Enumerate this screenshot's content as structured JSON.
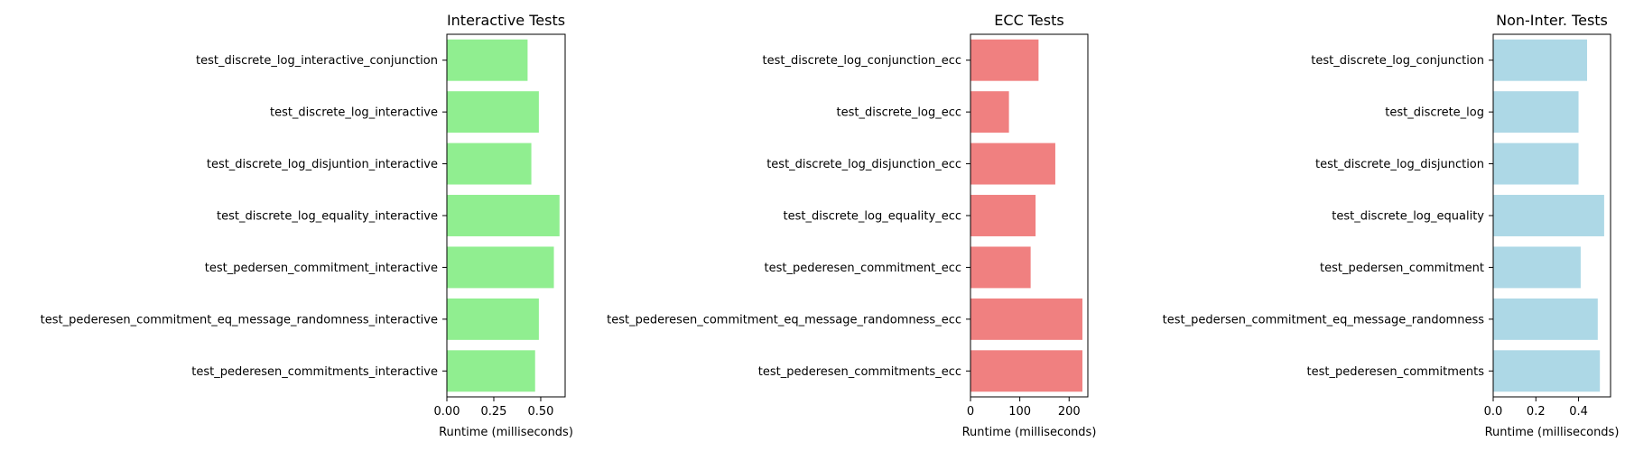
{
  "chart_data": [
    {
      "type": "bar",
      "orientation": "horizontal",
      "title": "Interactive Tests",
      "xlabel": "Runtime (milliseconds)",
      "ylabel": "",
      "xlim": [
        0,
        0.63
      ],
      "xticks": [
        0,
        0.25,
        0.5
      ],
      "xtick_labels": [
        "0.00",
        "0.25",
        "0.50"
      ],
      "color": "#90ee90",
      "categories": [
        "test_discrete_log_interactive_conjunction",
        "test_discrete_log_interactive",
        "test_discrete_log_disjuntion_interactive",
        "test_discrete_log_equality_interactive",
        "test_pedersen_commitment_interactive",
        "test_pederesen_commitment_eq_message_randomness_interactive",
        "test_pederesen_commitments_interactive"
      ],
      "values": [
        0.43,
        0.49,
        0.45,
        0.6,
        0.57,
        0.49,
        0.47
      ]
    },
    {
      "type": "bar",
      "orientation": "horizontal",
      "title": "ECC Tests",
      "xlabel": "Runtime (milliseconds)",
      "ylabel": "",
      "xlim": [
        0,
        238
      ],
      "xticks": [
        0,
        100,
        200
      ],
      "xtick_labels": [
        "0",
        "100",
        "200"
      ],
      "color": "#f08080",
      "categories": [
        "test_discrete_log_conjunction_ecc",
        "test_discrete_log_ecc",
        "test_discrete_log_disjunction_ecc",
        "test_discrete_log_equality_ecc",
        "test_pederesen_commitment_ecc",
        "test_pederesen_commitment_eq_message_randomness_ecc",
        "test_pederesen_commitments_ecc"
      ],
      "values": [
        138,
        78,
        172,
        132,
        122,
        227,
        227
      ]
    },
    {
      "type": "bar",
      "orientation": "horizontal",
      "title": "Non-Inter. Tests",
      "xlabel": "Runtime (milliseconds)",
      "ylabel": "",
      "xlim": [
        0,
        0.55
      ],
      "xticks": [
        0,
        0.2,
        0.4
      ],
      "xtick_labels": [
        "0.0",
        "0.2",
        "0.4"
      ],
      "color": "#add8e6",
      "categories": [
        "test_discrete_log_conjunction",
        "test_discrete_log",
        "test_discrete_log_disjunction",
        "test_discrete_log_equality",
        "test_pedersen_commitment",
        "test_pedersen_commitment_eq_message_randomness",
        "test_pederesen_commitments"
      ],
      "values": [
        0.44,
        0.4,
        0.4,
        0.52,
        0.41,
        0.49,
        0.5
      ]
    }
  ]
}
